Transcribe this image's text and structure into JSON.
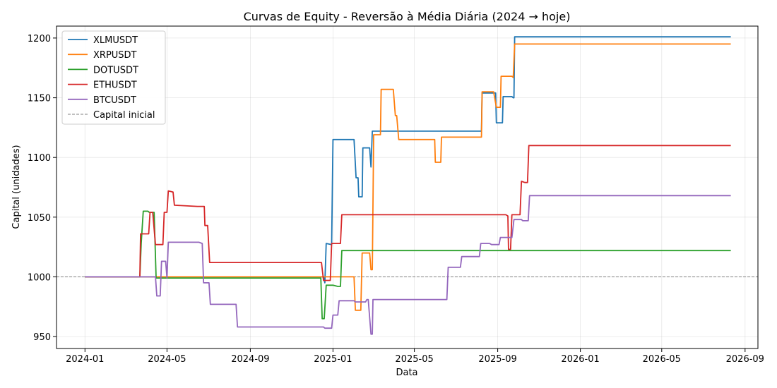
{
  "chart_data": {
    "type": "line",
    "title": "Curvas de Equity - Reversão à Média Diária (2024 → hoje)",
    "xlabel": "Data",
    "ylabel": "Capital (unidades)",
    "xlim": [
      "2023-11-20",
      "2026-09-20"
    ],
    "ylim": [
      940,
      1210
    ],
    "x_ticks": [
      {
        "date": "2024-01-01",
        "label": "2024-01"
      },
      {
        "date": "2024-05-01",
        "label": "2024-05"
      },
      {
        "date": "2024-09-01",
        "label": "2024-09"
      },
      {
        "date": "2025-01-01",
        "label": "2025-01"
      },
      {
        "date": "2025-05-01",
        "label": "2025-05"
      },
      {
        "date": "2025-09-01",
        "label": "2025-09"
      },
      {
        "date": "2026-01-01",
        "label": "2026-01"
      },
      {
        "date": "2026-05-01",
        "label": "2026-05"
      },
      {
        "date": "2026-09-01",
        "label": "2026-09"
      }
    ],
    "y_ticks": [
      950,
      1000,
      1050,
      1100,
      1150,
      1200
    ],
    "grid": true,
    "legend_position": "top-left",
    "series": [
      {
        "name": "XLMUSDT",
        "color": "#1f77b4",
        "points": [
          [
            "2024-01-01",
            1000
          ],
          [
            "2024-12-18",
            1000
          ],
          [
            "2024-12-20",
            995
          ],
          [
            "2024-12-22",
            1028
          ],
          [
            "2024-12-30",
            1027
          ],
          [
            "2025-01-01",
            1115
          ],
          [
            "2025-02-01",
            1115
          ],
          [
            "2025-02-04",
            1083
          ],
          [
            "2025-02-07",
            1083
          ],
          [
            "2025-02-08",
            1067
          ],
          [
            "2025-02-13",
            1067
          ],
          [
            "2025-02-14",
            1108
          ],
          [
            "2025-02-24",
            1108
          ],
          [
            "2025-02-26",
            1092
          ],
          [
            "2025-02-28",
            1122
          ],
          [
            "2025-08-08",
            1122
          ],
          [
            "2025-08-09",
            1154
          ],
          [
            "2025-08-29",
            1154
          ],
          [
            "2025-08-30",
            1129
          ],
          [
            "2025-09-08",
            1129
          ],
          [
            "2025-09-09",
            1151
          ],
          [
            "2025-09-22",
            1151
          ],
          [
            "2025-09-24",
            1150
          ],
          [
            "2025-09-25",
            1150
          ],
          [
            "2025-09-26",
            1201
          ],
          [
            "2026-08-11",
            1201
          ]
        ]
      },
      {
        "name": "XRPUSDT",
        "color": "#ff7f0e",
        "points": [
          [
            "2024-01-01",
            1000
          ],
          [
            "2025-02-01",
            1000
          ],
          [
            "2025-02-03",
            972
          ],
          [
            "2025-02-11",
            972
          ],
          [
            "2025-02-13",
            1020
          ],
          [
            "2025-02-24",
            1020
          ],
          [
            "2025-02-26",
            1006
          ],
          [
            "2025-02-28",
            1006
          ],
          [
            "2025-03-02",
            1119
          ],
          [
            "2025-03-12",
            1119
          ],
          [
            "2025-03-13",
            1157
          ],
          [
            "2025-03-31",
            1157
          ],
          [
            "2025-04-03",
            1135
          ],
          [
            "2025-04-05",
            1135
          ],
          [
            "2025-04-08",
            1115
          ],
          [
            "2025-05-31",
            1115
          ],
          [
            "2025-06-01",
            1096
          ],
          [
            "2025-06-09",
            1096
          ],
          [
            "2025-06-10",
            1117
          ],
          [
            "2025-08-08",
            1117
          ],
          [
            "2025-08-09",
            1155
          ],
          [
            "2025-08-26",
            1155
          ],
          [
            "2025-08-30",
            1142
          ],
          [
            "2025-09-05",
            1142
          ],
          [
            "2025-09-06",
            1168
          ],
          [
            "2025-09-22",
            1168
          ],
          [
            "2025-09-24",
            1167
          ],
          [
            "2025-09-26",
            1195
          ],
          [
            "2026-08-11",
            1195
          ]
        ]
      },
      {
        "name": "DOTUSDT",
        "color": "#2ca02c",
        "points": [
          [
            "2024-01-01",
            1000
          ],
          [
            "2024-03-22",
            1000
          ],
          [
            "2024-03-24",
            1028
          ],
          [
            "2024-03-27",
            1055
          ],
          [
            "2024-04-03",
            1055
          ],
          [
            "2024-04-05",
            1054
          ],
          [
            "2024-04-12",
            1054
          ],
          [
            "2024-04-15",
            999
          ],
          [
            "2024-12-14",
            999
          ],
          [
            "2024-12-16",
            965
          ],
          [
            "2024-12-19",
            965
          ],
          [
            "2024-12-22",
            993
          ],
          [
            "2025-01-01",
            993
          ],
          [
            "2025-01-08",
            992
          ],
          [
            "2025-01-12",
            992
          ],
          [
            "2025-01-14",
            1022
          ],
          [
            "2026-08-11",
            1022
          ]
        ]
      },
      {
        "name": "ETHUSDT",
        "color": "#d62728",
        "points": [
          [
            "2024-01-01",
            1000
          ],
          [
            "2024-03-22",
            1000
          ],
          [
            "2024-03-23",
            1036
          ],
          [
            "2024-04-04",
            1036
          ],
          [
            "2024-04-06",
            1054
          ],
          [
            "2024-04-10",
            1054
          ],
          [
            "2024-04-14",
            1027
          ],
          [
            "2024-04-25",
            1027
          ],
          [
            "2024-04-27",
            1054
          ],
          [
            "2024-05-01",
            1054
          ],
          [
            "2024-05-03",
            1072
          ],
          [
            "2024-05-10",
            1071
          ],
          [
            "2024-05-12",
            1060
          ],
          [
            "2024-06-15",
            1059
          ],
          [
            "2024-06-25",
            1059
          ],
          [
            "2024-06-26",
            1043
          ],
          [
            "2024-06-30",
            1043
          ],
          [
            "2024-07-03",
            1012
          ],
          [
            "2024-12-15",
            1012
          ],
          [
            "2024-12-18",
            997
          ],
          [
            "2024-12-28",
            997
          ],
          [
            "2024-12-30",
            1028
          ],
          [
            "2025-01-08",
            1028
          ],
          [
            "2025-01-12",
            1028
          ],
          [
            "2025-01-14",
            1052
          ],
          [
            "2025-09-13",
            1052
          ],
          [
            "2025-09-16",
            1051
          ],
          [
            "2025-09-17",
            1023
          ],
          [
            "2025-09-20",
            1023
          ],
          [
            "2025-09-22",
            1052
          ],
          [
            "2025-10-04",
            1052
          ],
          [
            "2025-10-06",
            1080
          ],
          [
            "2025-10-11",
            1079
          ],
          [
            "2025-10-15",
            1079
          ],
          [
            "2025-10-17",
            1110
          ],
          [
            "2026-08-11",
            1110
          ]
        ]
      },
      {
        "name": "BTCUSDT",
        "color": "#9467bd",
        "points": [
          [
            "2024-01-01",
            1000
          ],
          [
            "2024-04-14",
            1000
          ],
          [
            "2024-04-16",
            984
          ],
          [
            "2024-04-21",
            984
          ],
          [
            "2024-04-23",
            1013
          ],
          [
            "2024-04-29",
            1013
          ],
          [
            "2024-05-01",
            999
          ],
          [
            "2024-05-03",
            1029
          ],
          [
            "2024-06-17",
            1029
          ],
          [
            "2024-06-22",
            1028
          ],
          [
            "2024-06-24",
            995
          ],
          [
            "2024-07-02",
            995
          ],
          [
            "2024-07-04",
            977
          ],
          [
            "2024-08-11",
            977
          ],
          [
            "2024-08-13",
            958
          ],
          [
            "2024-12-18",
            958
          ],
          [
            "2024-12-20",
            957
          ],
          [
            "2024-12-30",
            957
          ],
          [
            "2025-01-01",
            968
          ],
          [
            "2025-01-08",
            968
          ],
          [
            "2025-01-10",
            980
          ],
          [
            "2025-02-01",
            980
          ],
          [
            "2025-02-03",
            979
          ],
          [
            "2025-02-18",
            979
          ],
          [
            "2025-02-20",
            981
          ],
          [
            "2025-02-22",
            981
          ],
          [
            "2025-02-26",
            952
          ],
          [
            "2025-02-28",
            952
          ],
          [
            "2025-03-01",
            981
          ],
          [
            "2025-06-18",
            981
          ],
          [
            "2025-06-20",
            1008
          ],
          [
            "2025-07-08",
            1008
          ],
          [
            "2025-07-10",
            1017
          ],
          [
            "2025-08-01",
            1017
          ],
          [
            "2025-08-05",
            1017
          ],
          [
            "2025-08-07",
            1028
          ],
          [
            "2025-08-20",
            1028
          ],
          [
            "2025-08-23",
            1027
          ],
          [
            "2025-09-03",
            1027
          ],
          [
            "2025-09-05",
            1033
          ],
          [
            "2025-09-22",
            1033
          ],
          [
            "2025-09-25",
            1048
          ],
          [
            "2025-10-06",
            1048
          ],
          [
            "2025-10-08",
            1047
          ],
          [
            "2025-10-16",
            1047
          ],
          [
            "2025-10-18",
            1068
          ],
          [
            "2026-08-11",
            1068
          ]
        ]
      }
    ],
    "reference_line": {
      "name": "Capital inicial",
      "value": 1000,
      "color": "#808080",
      "style": "dashed"
    }
  }
}
